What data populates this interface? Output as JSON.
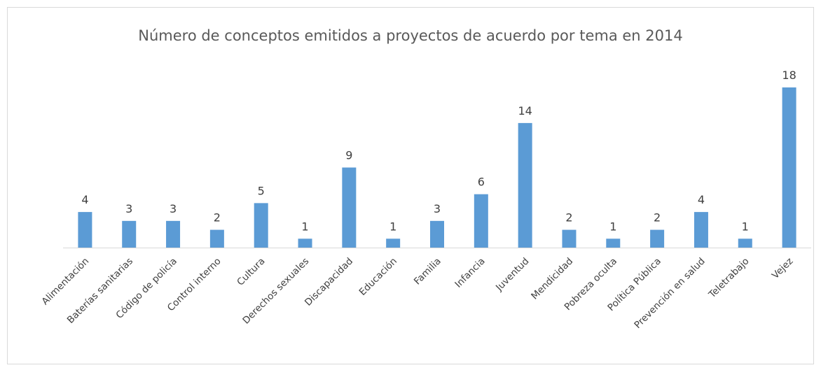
{
  "chart_data": {
    "type": "bar",
    "title": "Número de conceptos emitidos a proyectos de acuerdo por tema en 2014",
    "categories": [
      "Alimentación",
      "Baterías sanitarias",
      "Código de policía",
      "Control interno",
      "Cultura",
      "Derechos sexuales",
      "Discapacidad",
      "Educación",
      "Familia",
      "Infancia",
      "Juventud",
      "Mendicidad",
      "Pobreza oculta",
      "Política Pública",
      "Prevención en salud",
      "Teletrabajo",
      "Vejez"
    ],
    "values": [
      4,
      3,
      3,
      2,
      5,
      1,
      9,
      1,
      3,
      6,
      14,
      2,
      1,
      2,
      4,
      1,
      18
    ],
    "color": "#5b9bd5"
  }
}
